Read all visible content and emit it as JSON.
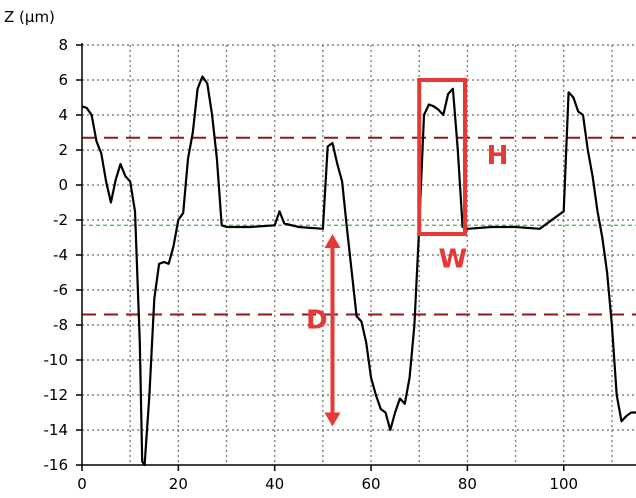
{
  "chart_data": {
    "type": "line",
    "ylabel": "Z (µm)",
    "xlabel": "",
    "xlim": [
      0,
      115
    ],
    "ylim": [
      -16,
      8
    ],
    "x_ticks": [
      0,
      20,
      40,
      60,
      80,
      100
    ],
    "y_ticks": [
      8,
      6,
      4,
      2,
      0,
      -2,
      -4,
      -6,
      -8,
      -10,
      -12,
      -14,
      -16
    ],
    "x_tick_labels": [
      "0",
      "20",
      "40",
      "60",
      "80",
      "100"
    ],
    "y_tick_labels": [
      "8",
      "6",
      "4",
      "2",
      "0",
      "-2",
      "-4",
      "-6",
      "-8",
      "-10",
      "-12",
      "-14",
      "-16"
    ],
    "grid": true,
    "colors": {
      "profile": "#000000",
      "grid": "#808080",
      "reference_dashed": "#8b1a1a",
      "reference_green": "#4caf50",
      "annotation": "#e53935"
    },
    "series": [
      {
        "x": [
          0,
          1,
          2,
          3,
          4,
          5,
          6,
          7,
          8,
          9,
          10,
          11,
          12,
          12.5,
          13,
          14,
          15,
          16,
          17,
          18,
          19,
          20,
          21,
          22,
          23,
          24,
          25,
          26,
          27,
          28,
          29,
          30,
          35,
          40,
          41,
          42,
          45,
          50,
          51,
          52,
          53,
          54,
          55,
          56,
          57,
          58,
          59,
          60,
          61,
          62,
          63,
          64,
          65,
          66,
          67,
          68,
          69,
          70,
          71,
          72,
          73,
          74,
          75,
          76,
          77,
          78,
          79,
          80,
          85,
          90,
          95,
          100,
          101,
          102,
          103,
          104,
          105,
          106,
          107,
          108,
          109,
          110,
          111,
          112,
          113,
          114,
          115
        ],
        "y": [
          4.5,
          4.4,
          4.0,
          2.5,
          1.8,
          0.2,
          -1.0,
          0.3,
          1.2,
          0.5,
          0.2,
          -1.5,
          -9.0,
          -15.8,
          -16.0,
          -12.0,
          -6.5,
          -4.5,
          -4.4,
          -4.5,
          -3.5,
          -2.0,
          -1.6,
          1.5,
          3.0,
          5.5,
          6.2,
          5.8,
          4.0,
          1.5,
          -2.3,
          -2.4,
          -2.4,
          -2.3,
          -1.5,
          -2.2,
          -2.4,
          -2.5,
          2.2,
          2.4,
          1.2,
          0.2,
          -2.5,
          -5.0,
          -7.5,
          -7.8,
          -9.0,
          -11.0,
          -12.0,
          -12.8,
          -13.0,
          -14.0,
          -13.0,
          -12.2,
          -12.5,
          -11.0,
          -8.0,
          -2.4,
          4.0,
          4.6,
          4.5,
          4.3,
          4.0,
          5.2,
          5.5,
          2.0,
          -2.4,
          -2.5,
          -2.4,
          -2.4,
          -2.5,
          -1.5,
          5.3,
          5.0,
          4.2,
          4.0,
          2.0,
          0.5,
          -1.5,
          -3.0,
          -5.0,
          -8.0,
          -12.0,
          -13.5,
          -13.2,
          -13.0,
          -13.0
        ]
      }
    ],
    "reference_lines": [
      {
        "y": 2.7,
        "style": "dashed",
        "color": "#8b1a1a"
      },
      {
        "y": -7.4,
        "style": "dashed",
        "color": "#8b1a1a"
      },
      {
        "y": -2.3,
        "style": "dashed",
        "color": "#4caf50"
      }
    ],
    "annotations": {
      "rectangle": {
        "x0": 70,
        "x1": 79.5,
        "y0": -2.8,
        "y1": 6.0,
        "color": "#e53935"
      },
      "arrow": {
        "x": 52,
        "y0": -2.8,
        "y1": -13.8,
        "color": "#e53935"
      },
      "labels": [
        {
          "text": "H",
          "x": 84,
          "y": 1.2
        },
        {
          "text": "W",
          "x": 74,
          "y": -4.7
        },
        {
          "text": "D",
          "x": 46.5,
          "y": -8.2
        }
      ]
    }
  }
}
